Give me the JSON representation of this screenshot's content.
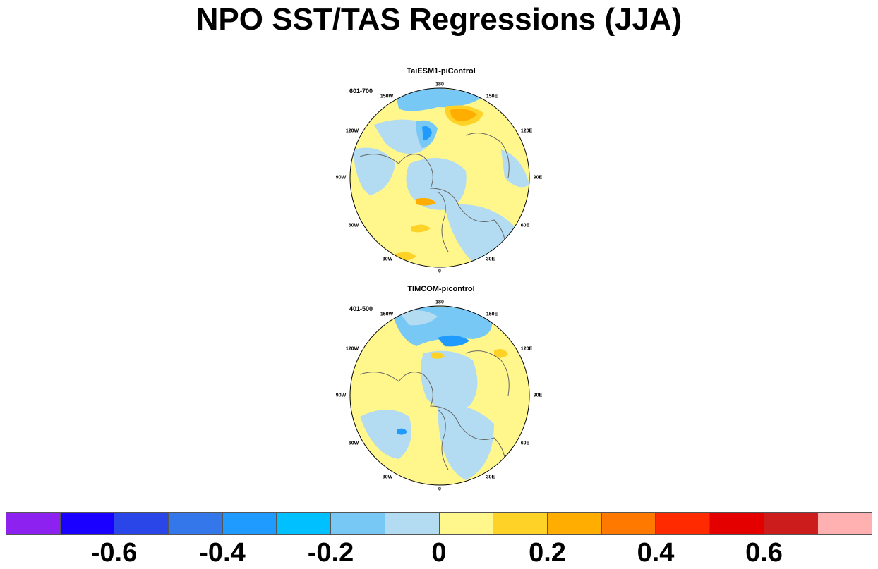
{
  "title": "NPO SST/TAS Regressions (JJA)",
  "longitude_labels": [
    "180",
    "150E",
    "120E",
    "90E",
    "60E",
    "30E",
    "0",
    "30W",
    "60W",
    "90W",
    "120W",
    "150W"
  ],
  "panels": [
    {
      "title": "TaiESM1-piControl",
      "period": "601-700"
    },
    {
      "title": "TIMCOM-picontrol",
      "period": "401-500"
    }
  ],
  "colorbar": {
    "colors": [
      "#8c21f0",
      "#1a00ff",
      "#2a46e8",
      "#3377ea",
      "#1f9bff",
      "#00c0ff",
      "#78c8f5",
      "#b3dcf2",
      "#fff68c",
      "#ffd227",
      "#ffad00",
      "#ff7800",
      "#ff2a00",
      "#e50000",
      "#cc1c1c",
      "#ffb0b0"
    ],
    "tick_labels": [
      "-0.6",
      "-0.4",
      "-0.2",
      "0",
      "0.2",
      "0.4",
      "0.6"
    ]
  }
}
